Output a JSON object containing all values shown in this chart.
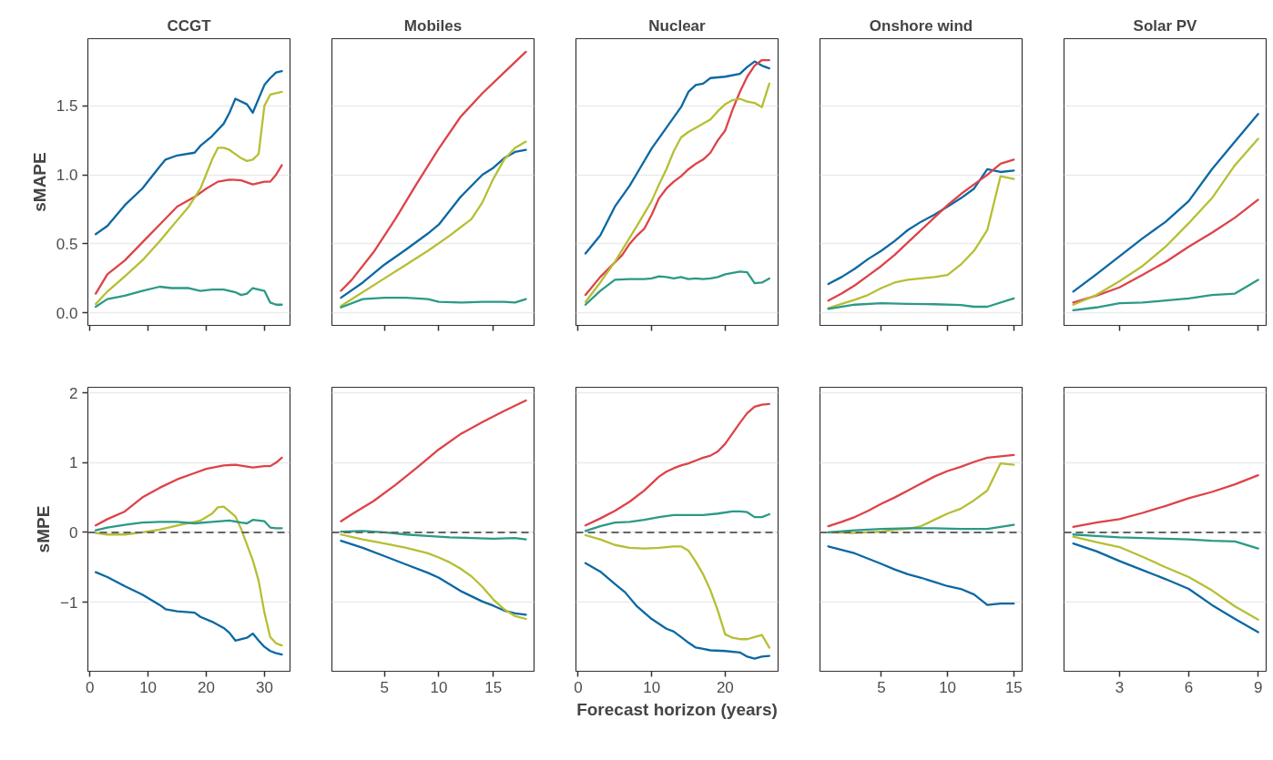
{
  "chart_data": [
    {
      "type": "line",
      "title": "CCGT",
      "ylabel": "sMAPE",
      "xlim": [
        -0.35,
        34.4
      ],
      "ylim": [
        -0.09,
        1.985
      ],
      "xticks": [
        0,
        10,
        20,
        30
      ],
      "yticks": [
        {
          "value": 0,
          "label": "0.0"
        },
        {
          "value": 0.5,
          "label": "0.5"
        },
        {
          "value": 1,
          "label": "1.0"
        },
        {
          "value": 1.5,
          "label": "1.5"
        }
      ],
      "tick_labels": "y",
      "grid": "y",
      "series": [
        {
          "color": "#0b68a3",
          "x": [
            1,
            3,
            6,
            9,
            12,
            13,
            15,
            18,
            19,
            21,
            23,
            24,
            25,
            27,
            28,
            29,
            30,
            31,
            32,
            33
          ],
          "values": [
            0.57,
            0.63,
            0.78,
            0.9,
            1.06,
            1.11,
            1.14,
            1.16,
            1.21,
            1.28,
            1.37,
            1.45,
            1.55,
            1.51,
            1.45,
            1.55,
            1.65,
            1.7,
            1.74,
            1.75
          ]
        },
        {
          "color": "#dd4349",
          "x": [
            1,
            3,
            6,
            9,
            12,
            15,
            18,
            20,
            22,
            24,
            26,
            28,
            30,
            31,
            32,
            33
          ],
          "values": [
            0.14,
            0.28,
            0.38,
            0.51,
            0.64,
            0.77,
            0.84,
            0.9,
            0.95,
            0.965,
            0.96,
            0.93,
            0.95,
            0.95,
            1.0,
            1.07
          ]
        },
        {
          "color": "#b6bf33",
          "x": [
            1,
            3,
            6,
            9,
            12,
            15,
            17,
            19,
            21,
            22,
            23,
            24,
            26,
            27,
            28,
            29,
            30,
            31,
            33
          ],
          "values": [
            0.065,
            0.155,
            0.265,
            0.38,
            0.52,
            0.67,
            0.77,
            0.9,
            1.11,
            1.195,
            1.195,
            1.18,
            1.12,
            1.1,
            1.11,
            1.15,
            1.5,
            1.58,
            1.6
          ]
        },
        {
          "color": "#2b9a86",
          "x": [
            1,
            3,
            6,
            9,
            12,
            14,
            17,
            19,
            21,
            23,
            24,
            25,
            26,
            27,
            28,
            29,
            30,
            31,
            32,
            33
          ],
          "values": [
            0.045,
            0.1,
            0.125,
            0.16,
            0.19,
            0.18,
            0.18,
            0.16,
            0.17,
            0.17,
            0.16,
            0.15,
            0.13,
            0.14,
            0.18,
            0.17,
            0.16,
            0.075,
            0.06,
            0.06
          ]
        }
      ]
    },
    {
      "type": "line",
      "title": "Mobiles",
      "xlim": [
        0.17,
        18.75
      ],
      "ylim": [
        -0.09,
        1.985
      ],
      "xticks": [
        5,
        10,
        15
      ],
      "yticks": [
        0,
        0.5,
        1,
        1.5
      ],
      "tick_labels": false,
      "grid": "y",
      "series": [
        {
          "color": "#0b68a3",
          "x": [
            1,
            3,
            5,
            7,
            9,
            10,
            12,
            14,
            15,
            16,
            17,
            18
          ],
          "values": [
            0.11,
            0.22,
            0.35,
            0.46,
            0.575,
            0.64,
            0.84,
            1.0,
            1.05,
            1.12,
            1.165,
            1.18
          ]
        },
        {
          "color": "#dd4349",
          "x": [
            1,
            2,
            4,
            6,
            8,
            10,
            12,
            14,
            16,
            18
          ],
          "values": [
            0.16,
            0.24,
            0.44,
            0.68,
            0.94,
            1.19,
            1.42,
            1.59,
            1.74,
            1.89
          ]
        },
        {
          "color": "#b6bf33",
          "x": [
            1,
            3,
            5,
            7,
            9,
            11,
            13,
            14,
            15,
            16,
            17,
            18
          ],
          "values": [
            0.05,
            0.15,
            0.25,
            0.35,
            0.45,
            0.56,
            0.68,
            0.8,
            0.97,
            1.11,
            1.195,
            1.24
          ]
        },
        {
          "color": "#2b9a86",
          "x": [
            1,
            3,
            5,
            7,
            9,
            10,
            12,
            14,
            16,
            17,
            18
          ],
          "values": [
            0.04,
            0.1,
            0.11,
            0.11,
            0.1,
            0.08,
            0.075,
            0.08,
            0.08,
            0.075,
            0.1
          ]
        }
      ]
    },
    {
      "type": "line",
      "title": "Nuclear",
      "xlim": [
        -0.3,
        27.2
      ],
      "ylim": [
        -0.09,
        1.985
      ],
      "xticks": [
        0,
        10,
        20
      ],
      "yticks": [
        0,
        0.5,
        1,
        1.5
      ],
      "tick_labels": false,
      "grid": "y",
      "series": [
        {
          "color": "#0b68a3",
          "x": [
            1,
            3,
            5,
            7,
            8,
            10,
            12,
            14,
            15,
            16,
            17,
            18,
            20,
            22,
            23,
            24,
            25,
            26
          ],
          "values": [
            0.43,
            0.56,
            0.77,
            0.92,
            1.01,
            1.19,
            1.34,
            1.49,
            1.6,
            1.65,
            1.66,
            1.7,
            1.71,
            1.73,
            1.78,
            1.82,
            1.79,
            1.77
          ]
        },
        {
          "color": "#dd4349",
          "x": [
            1,
            3,
            6,
            7,
            8,
            9,
            10,
            11,
            12,
            13,
            14,
            15,
            16,
            17,
            18,
            19,
            20,
            21,
            22,
            23,
            24,
            25,
            26
          ],
          "values": [
            0.13,
            0.26,
            0.42,
            0.5,
            0.56,
            0.61,
            0.71,
            0.83,
            0.9,
            0.95,
            0.99,
            1.04,
            1.08,
            1.11,
            1.16,
            1.25,
            1.32,
            1.47,
            1.6,
            1.71,
            1.79,
            1.83,
            1.83
          ]
        },
        {
          "color": "#b6bf33",
          "x": [
            1,
            3,
            5,
            8,
            10,
            11,
            12,
            13,
            14,
            15,
            16,
            17,
            18,
            19,
            20,
            21,
            22,
            23,
            24,
            25,
            26
          ],
          "values": [
            0.08,
            0.22,
            0.37,
            0.63,
            0.81,
            0.93,
            1.04,
            1.17,
            1.27,
            1.31,
            1.34,
            1.37,
            1.4,
            1.46,
            1.51,
            1.54,
            1.55,
            1.53,
            1.52,
            1.49,
            1.66
          ]
        },
        {
          "color": "#2b9a86",
          "x": [
            1,
            3,
            5,
            7,
            9,
            10,
            11,
            12,
            13,
            14,
            15,
            16,
            17,
            18,
            19,
            20,
            21,
            22,
            23,
            24,
            25,
            26
          ],
          "values": [
            0.06,
            0.16,
            0.24,
            0.245,
            0.245,
            0.25,
            0.265,
            0.26,
            0.25,
            0.26,
            0.245,
            0.25,
            0.245,
            0.25,
            0.26,
            0.28,
            0.29,
            0.3,
            0.295,
            0.215,
            0.22,
            0.25
          ]
        }
      ]
    },
    {
      "type": "line",
      "title": "Onshore wind",
      "xlim": [
        0.37,
        15.63
      ],
      "ylim": [
        -0.09,
        1.985
      ],
      "xticks": [
        5,
        10,
        15
      ],
      "yticks": [
        0,
        0.5,
        1,
        1.5
      ],
      "tick_labels": false,
      "grid": "y",
      "series": [
        {
          "color": "#0b68a3",
          "x": [
            1,
            2,
            3,
            4,
            5,
            6,
            7,
            8,
            9,
            10,
            11,
            12,
            13,
            14,
            15
          ],
          "values": [
            0.21,
            0.26,
            0.32,
            0.39,
            0.45,
            0.52,
            0.6,
            0.66,
            0.71,
            0.77,
            0.83,
            0.9,
            1.04,
            1.02,
            1.03
          ]
        },
        {
          "color": "#dd4349",
          "x": [
            1,
            2,
            3,
            4,
            5,
            6,
            7,
            8,
            9,
            10,
            11,
            12,
            13,
            14,
            15
          ],
          "values": [
            0.09,
            0.14,
            0.2,
            0.27,
            0.34,
            0.42,
            0.51,
            0.6,
            0.69,
            0.78,
            0.86,
            0.93,
            1.0,
            1.08,
            1.11
          ]
        },
        {
          "color": "#b6bf33",
          "x": [
            1,
            2,
            3,
            4,
            5,
            6,
            7,
            8,
            9,
            10,
            11,
            12,
            13,
            14,
            15
          ],
          "values": [
            0.035,
            0.065,
            0.095,
            0.13,
            0.18,
            0.22,
            0.24,
            0.25,
            0.26,
            0.275,
            0.35,
            0.45,
            0.6,
            0.99,
            0.97
          ]
        },
        {
          "color": "#2b9a86",
          "x": [
            1,
            3,
            5,
            7,
            9,
            11,
            12,
            13,
            15
          ],
          "values": [
            0.03,
            0.06,
            0.07,
            0.065,
            0.063,
            0.057,
            0.045,
            0.045,
            0.105
          ]
        }
      ]
    },
    {
      "type": "line",
      "title": "Solar PV",
      "xlim": [
        0.6,
        9.35
      ],
      "ylim": [
        -0.09,
        1.985
      ],
      "xticks": [
        3,
        6,
        9
      ],
      "yticks": [
        0,
        0.5,
        1,
        1.5
      ],
      "tick_labels": false,
      "grid": "y",
      "series": [
        {
          "color": "#0b68a3",
          "x": [
            1,
            2,
            3,
            4,
            5,
            6,
            7,
            8,
            9
          ],
          "values": [
            0.155,
            0.28,
            0.41,
            0.54,
            0.66,
            0.81,
            1.04,
            1.24,
            1.44
          ]
        },
        {
          "color": "#dd4349",
          "x": [
            1,
            2,
            3,
            4,
            5,
            6,
            7,
            8,
            9
          ],
          "values": [
            0.075,
            0.125,
            0.185,
            0.275,
            0.37,
            0.48,
            0.58,
            0.69,
            0.82
          ]
        },
        {
          "color": "#b6bf33",
          "x": [
            1,
            2,
            3,
            4,
            5,
            6,
            7,
            8,
            9
          ],
          "values": [
            0.06,
            0.13,
            0.23,
            0.34,
            0.48,
            0.65,
            0.83,
            1.07,
            1.26
          ]
        },
        {
          "color": "#2b9a86",
          "x": [
            1,
            2,
            3,
            4,
            5,
            6,
            7,
            8,
            9
          ],
          "values": [
            0.02,
            0.04,
            0.07,
            0.075,
            0.09,
            0.105,
            0.13,
            0.14,
            0.24
          ]
        }
      ]
    },
    {
      "type": "line",
      "ylabel": "sMPE",
      "xlim": [
        -0.35,
        34.4
      ],
      "ylim": [
        -1.99,
        2.08
      ],
      "xticks": [
        0,
        10,
        20,
        30
      ],
      "yticks": [
        {
          "value": -1,
          "label": "−1"
        },
        0,
        1,
        2
      ],
      "grid": "y",
      "ref_lines": [
        {
          "axis": "y",
          "value": 0,
          "color": "#666666",
          "line_style": "dashed"
        }
      ],
      "series": [
        {
          "color": "#0b68a3",
          "x": [
            1,
            3,
            6,
            9,
            12,
            13,
            15,
            18,
            19,
            21,
            23,
            24,
            25,
            27,
            28,
            29,
            30,
            31,
            32,
            33
          ],
          "values": [
            -0.57,
            -0.64,
            -0.77,
            -0.89,
            -1.04,
            -1.1,
            -1.13,
            -1.15,
            -1.21,
            -1.28,
            -1.37,
            -1.44,
            -1.55,
            -1.51,
            -1.45,
            -1.55,
            -1.64,
            -1.7,
            -1.73,
            -1.75
          ]
        },
        {
          "color": "#dd4349",
          "x": [
            1,
            3,
            6,
            9,
            12,
            15,
            18,
            20,
            23,
            25,
            28,
            30,
            31,
            32,
            33
          ],
          "values": [
            0.1,
            0.19,
            0.3,
            0.5,
            0.64,
            0.76,
            0.85,
            0.91,
            0.96,
            0.97,
            0.93,
            0.95,
            0.95,
            1.0,
            1.07
          ]
        },
        {
          "color": "#b6bf33",
          "x": [
            1,
            3,
            6,
            9,
            12,
            15,
            18,
            19,
            21,
            22,
            23,
            24,
            25,
            26,
            28,
            29,
            30,
            31,
            32,
            33
          ],
          "values": [
            -0.01,
            -0.03,
            -0.03,
            0.0,
            0.04,
            0.1,
            0.15,
            0.17,
            0.27,
            0.36,
            0.37,
            0.3,
            0.23,
            0.05,
            -0.4,
            -0.69,
            -1.15,
            -1.5,
            -1.59,
            -1.62
          ]
        },
        {
          "color": "#2b9a86",
          "x": [
            1,
            3,
            6,
            9,
            12,
            15,
            18,
            21,
            24,
            26,
            27,
            28,
            29,
            30,
            31,
            32,
            33
          ],
          "values": [
            0.03,
            0.07,
            0.11,
            0.14,
            0.15,
            0.15,
            0.13,
            0.15,
            0.17,
            0.14,
            0.13,
            0.18,
            0.17,
            0.16,
            0.07,
            0.06,
            0.06
          ]
        }
      ]
    },
    {
      "type": "line",
      "xlim": [
        0.17,
        18.75
      ],
      "ylim": [
        -1.99,
        2.08
      ],
      "xticks": [
        5,
        10,
        15
      ],
      "yticks": [
        -1,
        0,
        1,
        2
      ],
      "tick_labels": "x",
      "grid": "y",
      "ref_lines": [
        {
          "axis": "y",
          "value": 0,
          "color": "#666666",
          "line_style": "dashed"
        }
      ],
      "series": [
        {
          "color": "#0b68a3",
          "x": [
            1,
            3,
            5,
            7,
            9,
            10,
            12,
            14,
            15,
            16,
            17,
            18
          ],
          "values": [
            -0.12,
            -0.22,
            -0.34,
            -0.46,
            -0.58,
            -0.65,
            -0.84,
            -0.99,
            -1.05,
            -1.12,
            -1.16,
            -1.18
          ]
        },
        {
          "color": "#dd4349",
          "x": [
            1,
            2,
            4,
            6,
            8,
            10,
            12,
            14,
            16,
            18
          ],
          "values": [
            0.16,
            0.26,
            0.45,
            0.68,
            0.93,
            1.19,
            1.41,
            1.58,
            1.74,
            1.89
          ]
        },
        {
          "color": "#b6bf33",
          "x": [
            1,
            3,
            5,
            7,
            9,
            10,
            11,
            12,
            13,
            14,
            15,
            16,
            17,
            18
          ],
          "values": [
            -0.03,
            -0.1,
            -0.16,
            -0.22,
            -0.3,
            -0.36,
            -0.43,
            -0.52,
            -0.63,
            -0.78,
            -0.96,
            -1.1,
            -1.2,
            -1.24
          ]
        },
        {
          "color": "#2b9a86",
          "x": [
            1,
            3,
            5,
            7,
            9,
            11,
            13,
            15,
            17,
            18
          ],
          "values": [
            0.01,
            0.02,
            0.0,
            -0.03,
            -0.05,
            -0.07,
            -0.08,
            -0.09,
            -0.08,
            -0.1
          ]
        }
      ]
    },
    {
      "type": "line",
      "xlabel": "Forecast horizon (years)",
      "xlim": [
        -0.3,
        27.2
      ],
      "ylim": [
        -1.99,
        2.08
      ],
      "xticks": [
        0,
        10,
        20
      ],
      "yticks": [
        -1,
        0,
        1,
        2
      ],
      "tick_labels": "x",
      "grid": "y",
      "ref_lines": [
        {
          "axis": "y",
          "value": 0,
          "color": "#666666",
          "line_style": "dashed"
        }
      ],
      "series": [
        {
          "color": "#0b68a3",
          "x": [
            1,
            3,
            5,
            6.4,
            8,
            10,
            12,
            13,
            14,
            15,
            16,
            17,
            18,
            20,
            22,
            23,
            24,
            25,
            26
          ],
          "values": [
            -0.44,
            -0.56,
            -0.74,
            -0.86,
            -1.06,
            -1.24,
            -1.38,
            -1.42,
            -1.5,
            -1.58,
            -1.65,
            -1.67,
            -1.69,
            -1.7,
            -1.72,
            -1.78,
            -1.81,
            -1.78,
            -1.77
          ]
        },
        {
          "color": "#dd4349",
          "x": [
            1,
            3,
            5,
            7,
            9,
            11,
            12,
            13,
            14,
            15,
            16,
            17,
            18,
            19,
            20,
            21,
            22,
            23,
            24,
            25,
            26
          ],
          "values": [
            0.1,
            0.2,
            0.31,
            0.44,
            0.6,
            0.8,
            0.87,
            0.92,
            0.96,
            0.99,
            1.03,
            1.07,
            1.1,
            1.16,
            1.27,
            1.42,
            1.57,
            1.71,
            1.8,
            1.83,
            1.84
          ]
        },
        {
          "color": "#b6bf33",
          "x": [
            1,
            3,
            5,
            7,
            9,
            11,
            13,
            14,
            15,
            16,
            17,
            18,
            19,
            20,
            21,
            22,
            23,
            24,
            25,
            26
          ],
          "values": [
            -0.04,
            -0.1,
            -0.18,
            -0.22,
            -0.23,
            -0.22,
            -0.2,
            -0.2,
            -0.26,
            -0.42,
            -0.6,
            -0.83,
            -1.12,
            -1.46,
            -1.51,
            -1.53,
            -1.53,
            -1.5,
            -1.47,
            -1.65
          ]
        },
        {
          "color": "#2b9a86",
          "x": [
            1,
            3,
            5,
            7,
            9,
            11,
            13,
            15,
            17,
            19,
            21,
            22,
            23,
            24,
            25,
            26
          ],
          "values": [
            0.02,
            0.09,
            0.14,
            0.15,
            0.18,
            0.22,
            0.25,
            0.25,
            0.25,
            0.27,
            0.3,
            0.3,
            0.29,
            0.22,
            0.22,
            0.26
          ]
        }
      ]
    },
    {
      "type": "line",
      "xlim": [
        0.37,
        15.63
      ],
      "ylim": [
        -1.99,
        2.08
      ],
      "xticks": [
        5,
        10,
        15
      ],
      "yticks": [
        -1,
        0,
        1,
        2
      ],
      "tick_labels": "x",
      "grid": "y",
      "ref_lines": [
        {
          "axis": "y",
          "value": 0,
          "color": "#666666",
          "line_style": "dashed"
        }
      ],
      "series": [
        {
          "color": "#0b68a3",
          "x": [
            1,
            3,
            5,
            6,
            7,
            8,
            9,
            10,
            11,
            12,
            13,
            14,
            15
          ],
          "values": [
            -0.2,
            -0.3,
            -0.45,
            -0.53,
            -0.6,
            -0.65,
            -0.71,
            -0.77,
            -0.81,
            -0.89,
            -1.04,
            -1.02,
            -1.02
          ]
        },
        {
          "color": "#dd4349",
          "x": [
            1,
            2,
            3,
            4,
            5,
            6,
            7,
            8,
            9,
            10,
            11,
            12,
            13,
            14,
            15
          ],
          "values": [
            0.09,
            0.15,
            0.22,
            0.31,
            0.41,
            0.5,
            0.6,
            0.7,
            0.8,
            0.88,
            0.94,
            1.01,
            1.07,
            1.09,
            1.11
          ]
        },
        {
          "color": "#b6bf33",
          "x": [
            1,
            3,
            5,
            6,
            7,
            8,
            9,
            10,
            11,
            12,
            13,
            14,
            15
          ],
          "values": [
            0.0,
            -0.01,
            0.01,
            0.04,
            0.05,
            0.09,
            0.18,
            0.27,
            0.34,
            0.46,
            0.6,
            0.99,
            0.97
          ]
        },
        {
          "color": "#2b9a86",
          "x": [
            1,
            3,
            5,
            7,
            9,
            11,
            12,
            13,
            15
          ],
          "values": [
            0.0,
            0.03,
            0.05,
            0.06,
            0.06,
            0.05,
            0.05,
            0.05,
            0.11
          ]
        }
      ]
    },
    {
      "type": "line",
      "xlim": [
        0.6,
        9.35
      ],
      "ylim": [
        -1.99,
        2.08
      ],
      "xticks": [
        3,
        6,
        9
      ],
      "yticks": [
        -1,
        0,
        1,
        2
      ],
      "tick_labels": "x",
      "grid": "y",
      "ref_lines": [
        {
          "axis": "y",
          "value": 0,
          "color": "#666666",
          "line_style": "dashed"
        }
      ],
      "series": [
        {
          "color": "#0b68a3",
          "x": [
            1,
            2,
            3,
            4,
            5,
            6,
            7,
            8,
            9
          ],
          "values": [
            -0.16,
            -0.27,
            -0.41,
            -0.54,
            -0.67,
            -0.81,
            -1.04,
            -1.24,
            -1.43
          ]
        },
        {
          "color": "#dd4349",
          "x": [
            1,
            2,
            3,
            4,
            5,
            6,
            7,
            8,
            9
          ],
          "values": [
            0.08,
            0.14,
            0.19,
            0.28,
            0.38,
            0.49,
            0.58,
            0.69,
            0.82
          ]
        },
        {
          "color": "#b6bf33",
          "x": [
            1,
            2,
            3,
            4,
            5,
            6,
            7,
            8,
            9
          ],
          "values": [
            -0.06,
            -0.14,
            -0.21,
            -0.35,
            -0.5,
            -0.64,
            -0.83,
            -1.06,
            -1.25
          ]
        },
        {
          "color": "#2b9a86",
          "x": [
            1,
            2,
            3,
            4,
            5,
            6,
            7,
            8,
            9
          ],
          "values": [
            -0.03,
            -0.05,
            -0.07,
            -0.08,
            -0.09,
            -0.1,
            -0.12,
            -0.13,
            -0.23
          ]
        }
      ]
    }
  ]
}
